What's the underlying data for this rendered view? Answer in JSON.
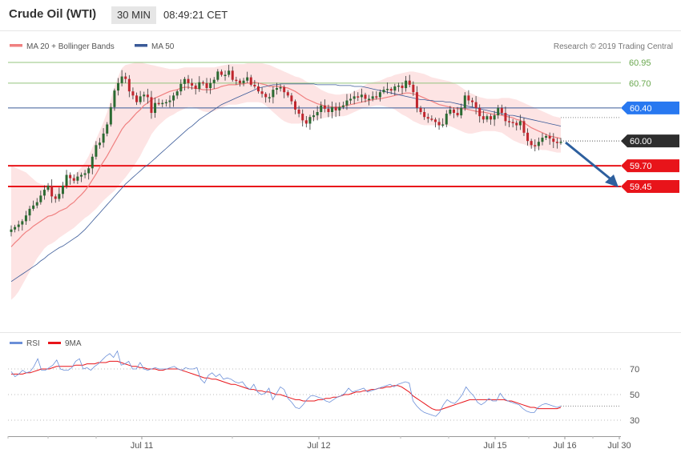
{
  "header": {
    "title": "Crude Oil (WTI)",
    "timeframe": "30 MIN",
    "time": "08:49:21 CET"
  },
  "legend": {
    "ma20": "MA 20 + Bollinger Bands",
    "ma50": "MA 50",
    "copyright": "Research © 2019 Trading Central"
  },
  "rsi_legend": {
    "rsi": "RSI",
    "ma9": "9MA"
  },
  "colors": {
    "up": "#2b6a32",
    "down": "#c0262e",
    "band_fill": "#fde4e4",
    "ma20": "#f08080",
    "ma50": "#3a5a98",
    "support": "#e8141a",
    "resistance": "#93c47d",
    "pivot": "#1a5ba8",
    "current_tag": "#2d2d2d",
    "pivot_tag": "#2878f0",
    "arrow": "#2d5f9e",
    "rsi": "#6b8fd8",
    "rsi_ma": "#e8141a"
  },
  "chart_data": {
    "type": "candlestick",
    "ylim": [
      58.2,
      61.3
    ],
    "ticks": [
      "Jul 11",
      "Jul 12",
      "Jul 15",
      "Jul 16",
      "Jul 30"
    ],
    "levels": [
      {
        "value": 60.95,
        "label": "60.95",
        "kind": "resistance"
      },
      {
        "value": 60.7,
        "label": "60.70",
        "kind": "resistance"
      },
      {
        "value": 60.4,
        "label": "60.40",
        "kind": "pivot"
      },
      {
        "value": 59.7,
        "label": "59.70",
        "kind": "support"
      },
      {
        "value": 59.45,
        "label": "59.45",
        "kind": "support"
      }
    ],
    "current": {
      "value": 60.0,
      "label": "60.00"
    },
    "closes": [
      58.93,
      58.96,
      58.99,
      59.03,
      59.1,
      59.18,
      59.22,
      59.26,
      59.34,
      59.41,
      59.46,
      59.33,
      59.3,
      59.36,
      59.46,
      59.59,
      59.55,
      59.52,
      59.57,
      59.59,
      59.61,
      59.67,
      59.81,
      59.95,
      59.98,
      60.09,
      60.2,
      60.41,
      60.61,
      60.7,
      60.78,
      60.75,
      60.6,
      60.55,
      60.47,
      60.54,
      60.56,
      60.53,
      60.34,
      60.46,
      60.45,
      60.46,
      60.47,
      60.49,
      60.55,
      60.6,
      60.69,
      60.75,
      60.7,
      60.67,
      60.63,
      60.71,
      60.7,
      60.64,
      60.7,
      60.74,
      60.84,
      60.8,
      60.8,
      60.85,
      60.74,
      60.73,
      60.7,
      60.73,
      60.77,
      60.68,
      60.66,
      60.6,
      60.57,
      60.53,
      60.53,
      60.62,
      60.64,
      60.65,
      60.59,
      60.55,
      60.48,
      60.38,
      60.33,
      60.25,
      60.21,
      60.29,
      60.31,
      60.35,
      60.43,
      60.39,
      60.35,
      60.41,
      60.37,
      60.41,
      60.43,
      60.49,
      60.51,
      60.54,
      60.53,
      60.56,
      60.51,
      60.51,
      60.54,
      60.53,
      60.59,
      60.62,
      60.63,
      60.61,
      60.66,
      60.67,
      60.64,
      60.73,
      60.68,
      60.59,
      60.4,
      60.35,
      60.29,
      60.27,
      60.26,
      60.23,
      60.19,
      60.2,
      60.33,
      60.38,
      60.34,
      60.31,
      60.4,
      60.55,
      60.49,
      60.47,
      60.4,
      60.3,
      60.26,
      60.3,
      60.26,
      60.31,
      60.4,
      60.34,
      60.24,
      60.23,
      60.22,
      60.19,
      60.24,
      60.1,
      60.0,
      59.95,
      59.94,
      59.99,
      60.04,
      60.06,
      60.03,
      59.99,
      59.98,
      59.99
    ],
    "ma20": [
      58.72,
      58.77,
      58.81,
      58.86,
      58.9,
      58.93,
      58.97,
      59.0,
      59.03,
      59.06,
      59.09,
      59.1,
      59.12,
      59.15,
      59.17,
      59.19,
      59.23,
      59.26,
      59.31,
      59.35,
      59.4,
      59.46,
      59.53,
      59.6,
      59.68,
      59.75,
      59.82,
      59.9,
      59.98,
      60.06,
      60.14,
      60.2,
      60.24,
      60.29,
      60.34,
      60.38,
      60.43,
      60.46,
      60.5,
      60.52,
      60.54,
      60.56,
      60.58,
      60.6,
      60.61,
      60.62,
      60.64,
      60.65,
      60.65,
      60.64,
      60.64,
      60.63,
      60.62,
      60.62,
      60.62,
      60.63,
      60.64,
      60.66,
      60.67,
      60.68,
      60.68,
      60.68,
      60.69,
      60.69,
      60.7,
      60.7,
      60.71,
      60.7,
      60.69,
      60.68,
      60.66,
      60.66,
      60.66,
      60.66,
      60.65,
      60.64,
      60.62,
      60.6,
      60.57,
      60.54,
      60.51,
      60.49,
      60.47,
      60.45,
      60.44,
      60.42,
      60.42,
      60.41,
      60.41,
      60.41,
      60.42,
      60.43,
      60.44,
      60.45,
      60.46,
      60.47,
      60.48,
      60.49,
      60.5,
      60.51,
      60.51,
      60.52,
      60.53,
      60.54,
      60.55,
      60.56,
      60.57,
      60.58,
      60.58,
      60.57,
      60.56,
      60.54,
      60.52,
      60.5,
      60.48,
      60.46,
      60.44,
      60.43,
      60.42,
      60.41,
      60.4,
      60.39,
      60.39,
      60.39,
      60.38,
      60.37,
      60.36,
      60.35,
      60.35,
      60.34,
      60.33,
      60.32,
      60.32,
      60.31,
      60.3,
      60.29,
      60.28,
      60.26,
      60.25,
      60.22,
      60.19,
      60.16,
      60.14,
      60.12,
      60.1,
      60.08,
      60.06,
      60.05,
      60.04,
      60.03
    ],
    "bb_upper": [
      59.7,
      59.68,
      59.66,
      59.64,
      59.62,
      59.58,
      59.54,
      59.5,
      59.48,
      59.47,
      59.47,
      59.46,
      59.45,
      59.45,
      59.46,
      59.5,
      59.54,
      59.58,
      59.63,
      59.68,
      59.74,
      59.82,
      59.92,
      60.02,
      60.12,
      60.23,
      60.35,
      60.5,
      60.66,
      60.78,
      60.88,
      60.92,
      60.93,
      60.94,
      60.95,
      60.95,
      60.94,
      60.93,
      60.92,
      60.91,
      60.9,
      60.89,
      60.88,
      60.87,
      60.87,
      60.87,
      60.88,
      60.89,
      60.89,
      60.89,
      60.89,
      60.89,
      60.89,
      60.89,
      60.89,
      60.89,
      60.9,
      60.91,
      60.92,
      60.93,
      60.93,
      60.93,
      60.93,
      60.93,
      60.94,
      60.94,
      60.94,
      60.94,
      60.94,
      60.93,
      60.92,
      60.9,
      60.88,
      60.86,
      60.84,
      60.82,
      60.8,
      60.78,
      60.77,
      60.75,
      60.72,
      60.7,
      60.68,
      60.65,
      60.62,
      60.6,
      60.58,
      60.57,
      60.56,
      60.56,
      60.57,
      60.57,
      60.58,
      60.6,
      60.62,
      60.65,
      60.68,
      60.7,
      60.71,
      60.72,
      60.73,
      60.75,
      60.77,
      60.78,
      60.8,
      60.81,
      60.82,
      60.83,
      60.84,
      60.84,
      60.83,
      60.82,
      60.81,
      60.79,
      60.77,
      60.76,
      60.75,
      60.74,
      60.73,
      60.72,
      60.7,
      60.68,
      60.65,
      60.62,
      60.59,
      60.57,
      60.55,
      60.53,
      60.52,
      60.51,
      60.51,
      60.51,
      60.51,
      60.52,
      60.52,
      60.52,
      60.51,
      60.5,
      60.48,
      60.46,
      60.44,
      60.42,
      60.4,
      60.38,
      60.36,
      60.34,
      60.32,
      60.3,
      60.29,
      60.28
    ],
    "bb_lower": [
      58.08,
      58.12,
      58.18,
      58.26,
      58.34,
      58.42,
      58.5,
      58.58,
      58.64,
      58.7,
      58.74,
      58.76,
      58.79,
      58.83,
      58.86,
      58.89,
      58.92,
      58.95,
      58.99,
      59.03,
      59.07,
      59.1,
      59.14,
      59.18,
      59.23,
      59.28,
      59.32,
      59.36,
      59.4,
      59.45,
      59.51,
      59.56,
      59.62,
      59.68,
      59.75,
      59.82,
      59.91,
      59.99,
      60.08,
      60.14,
      60.19,
      60.23,
      60.27,
      60.3,
      60.32,
      60.35,
      60.37,
      60.39,
      60.41,
      60.41,
      60.4,
      60.38,
      60.36,
      60.35,
      60.35,
      60.36,
      60.38,
      60.4,
      60.42,
      60.44,
      60.44,
      60.44,
      60.45,
      60.46,
      60.47,
      60.47,
      60.47,
      60.47,
      60.46,
      60.43,
      60.39,
      60.35,
      60.31,
      60.27,
      60.24,
      60.22,
      60.21,
      60.21,
      60.21,
      60.22,
      60.23,
      60.24,
      60.25,
      60.26,
      60.27,
      60.28,
      60.29,
      60.3,
      60.3,
      60.3,
      60.3,
      60.31,
      60.33,
      60.35,
      60.37,
      60.39,
      60.4,
      60.41,
      60.42,
      60.43,
      60.43,
      60.42,
      60.41,
      60.4,
      60.38,
      60.35,
      60.32,
      60.3,
      60.27,
      60.24,
      60.22,
      60.2,
      60.19,
      60.19,
      60.19,
      60.19,
      60.19,
      60.19,
      60.19,
      60.18,
      60.16,
      60.14,
      60.12,
      60.1,
      60.09,
      60.09,
      60.1,
      60.11,
      60.12,
      60.12,
      60.12,
      60.12,
      60.11,
      60.1,
      60.07,
      60.04,
      60.01,
      59.99,
      59.97,
      59.96,
      59.94,
      59.92,
      59.91,
      59.9,
      59.89,
      59.89,
      59.88,
      59.87,
      59.86,
      59.86
    ],
    "ma50": [
      58.3,
      58.33,
      58.36,
      58.39,
      58.42,
      58.45,
      58.48,
      58.51,
      58.55,
      58.58,
      58.62,
      58.65,
      58.68,
      58.71,
      58.73,
      58.76,
      58.79,
      58.82,
      58.85,
      58.89,
      58.93,
      58.98,
      59.03,
      59.08,
      59.13,
      59.18,
      59.23,
      59.28,
      59.33,
      59.38,
      59.43,
      59.48,
      59.52,
      59.56,
      59.6,
      59.64,
      59.68,
      59.71,
      59.75,
      59.79,
      59.83,
      59.87,
      59.91,
      59.95,
      59.99,
      60.03,
      60.07,
      60.11,
      60.15,
      60.18,
      60.22,
      60.26,
      60.29,
      60.32,
      60.35,
      60.38,
      60.41,
      60.44,
      60.46,
      60.48,
      60.5,
      60.52,
      60.54,
      60.56,
      60.58,
      60.6,
      60.62,
      60.64,
      60.65,
      60.66,
      60.67,
      60.68,
      60.68,
      60.69,
      60.69,
      60.69,
      60.69,
      60.69,
      60.69,
      60.69,
      60.69,
      60.69,
      60.69,
      60.68,
      60.68,
      60.68,
      60.68,
      60.68,
      60.68,
      60.67,
      60.67,
      60.67,
      60.67,
      60.66,
      60.66,
      60.66,
      60.65,
      60.64,
      60.63,
      60.62,
      60.61,
      60.6,
      60.59,
      60.58,
      60.57,
      60.56,
      60.55,
      60.54,
      60.53,
      60.52,
      60.51,
      60.5,
      60.5,
      60.49,
      60.49,
      60.48,
      60.48,
      60.48,
      60.47,
      60.47,
      60.46,
      60.45,
      60.44,
      60.43,
      60.42,
      60.41,
      60.4,
      60.39,
      60.38,
      60.37,
      60.36,
      60.35,
      60.34,
      60.33,
      60.32,
      60.31,
      60.31,
      60.3,
      60.29,
      60.28,
      60.27,
      60.26,
      60.25,
      60.24,
      60.23,
      60.22,
      60.21,
      60.2,
      60.19,
      60.18
    ],
    "rsi": {
      "ticks": [
        70,
        50,
        30
      ],
      "ylim": [
        19,
        93
      ],
      "rsi": [
        68,
        64,
        66,
        69,
        67,
        68,
        72,
        78,
        69,
        69,
        71,
        73,
        77,
        70,
        69,
        69,
        71,
        76,
        78,
        70,
        71,
        69,
        72,
        74,
        77,
        80,
        82,
        79,
        84,
        73,
        74,
        76,
        70,
        70,
        75,
        70,
        69,
        70,
        71,
        70,
        70,
        70,
        71,
        72,
        70,
        69,
        71,
        70,
        70,
        71,
        62,
        59,
        65,
        67,
        64,
        66,
        62,
        63,
        62,
        60,
        59,
        60,
        56,
        54,
        58,
        52,
        50,
        51,
        55,
        46,
        51,
        56,
        54,
        47,
        44,
        40,
        39,
        42,
        46,
        49,
        49,
        48,
        47,
        45,
        44,
        46,
        48,
        49,
        51,
        55,
        52,
        53,
        54,
        55,
        52,
        53,
        54,
        55,
        56,
        57,
        58,
        56,
        58,
        59,
        60,
        59,
        45,
        41,
        38,
        36,
        35,
        34,
        33,
        36,
        42,
        46,
        44,
        43,
        46,
        50,
        56,
        52,
        49,
        44,
        42,
        44,
        47,
        45,
        45,
        51,
        47,
        45,
        44,
        43,
        42,
        39,
        37,
        36,
        36,
        40,
        42,
        43,
        42,
        41,
        40,
        41
      ],
      "ma9": [
        66,
        66,
        66,
        66,
        67,
        67,
        68,
        69,
        70,
        70,
        70,
        71,
        72,
        72,
        72,
        72,
        72,
        73,
        73,
        73,
        74,
        74,
        74,
        75,
        75,
        75,
        76,
        76,
        76,
        75,
        74,
        73,
        72,
        72,
        71,
        71,
        70,
        70,
        70,
        69,
        69,
        70,
        70,
        70,
        70,
        69,
        68,
        67,
        66,
        65,
        64,
        63,
        63,
        62,
        62,
        61,
        60,
        59,
        58,
        58,
        57,
        56,
        55,
        54,
        54,
        53,
        53,
        52,
        52,
        51,
        50,
        50,
        49,
        48,
        47,
        46,
        46,
        45,
        45,
        45,
        45,
        46,
        46,
        47,
        47,
        48,
        48,
        49,
        50,
        50,
        51,
        52,
        52,
        53,
        53,
        54,
        54,
        55,
        55,
        56,
        56,
        57,
        57,
        56,
        54,
        52,
        49,
        47,
        45,
        43,
        41,
        39,
        38,
        38,
        39,
        40,
        41,
        42,
        43,
        44,
        45,
        46,
        46,
        46,
        46,
        46,
        46,
        46,
        46,
        46,
        46,
        45,
        45,
        44,
        43,
        42,
        41,
        40,
        40,
        39,
        39,
        39,
        39,
        39,
        39,
        40
      ]
    }
  }
}
